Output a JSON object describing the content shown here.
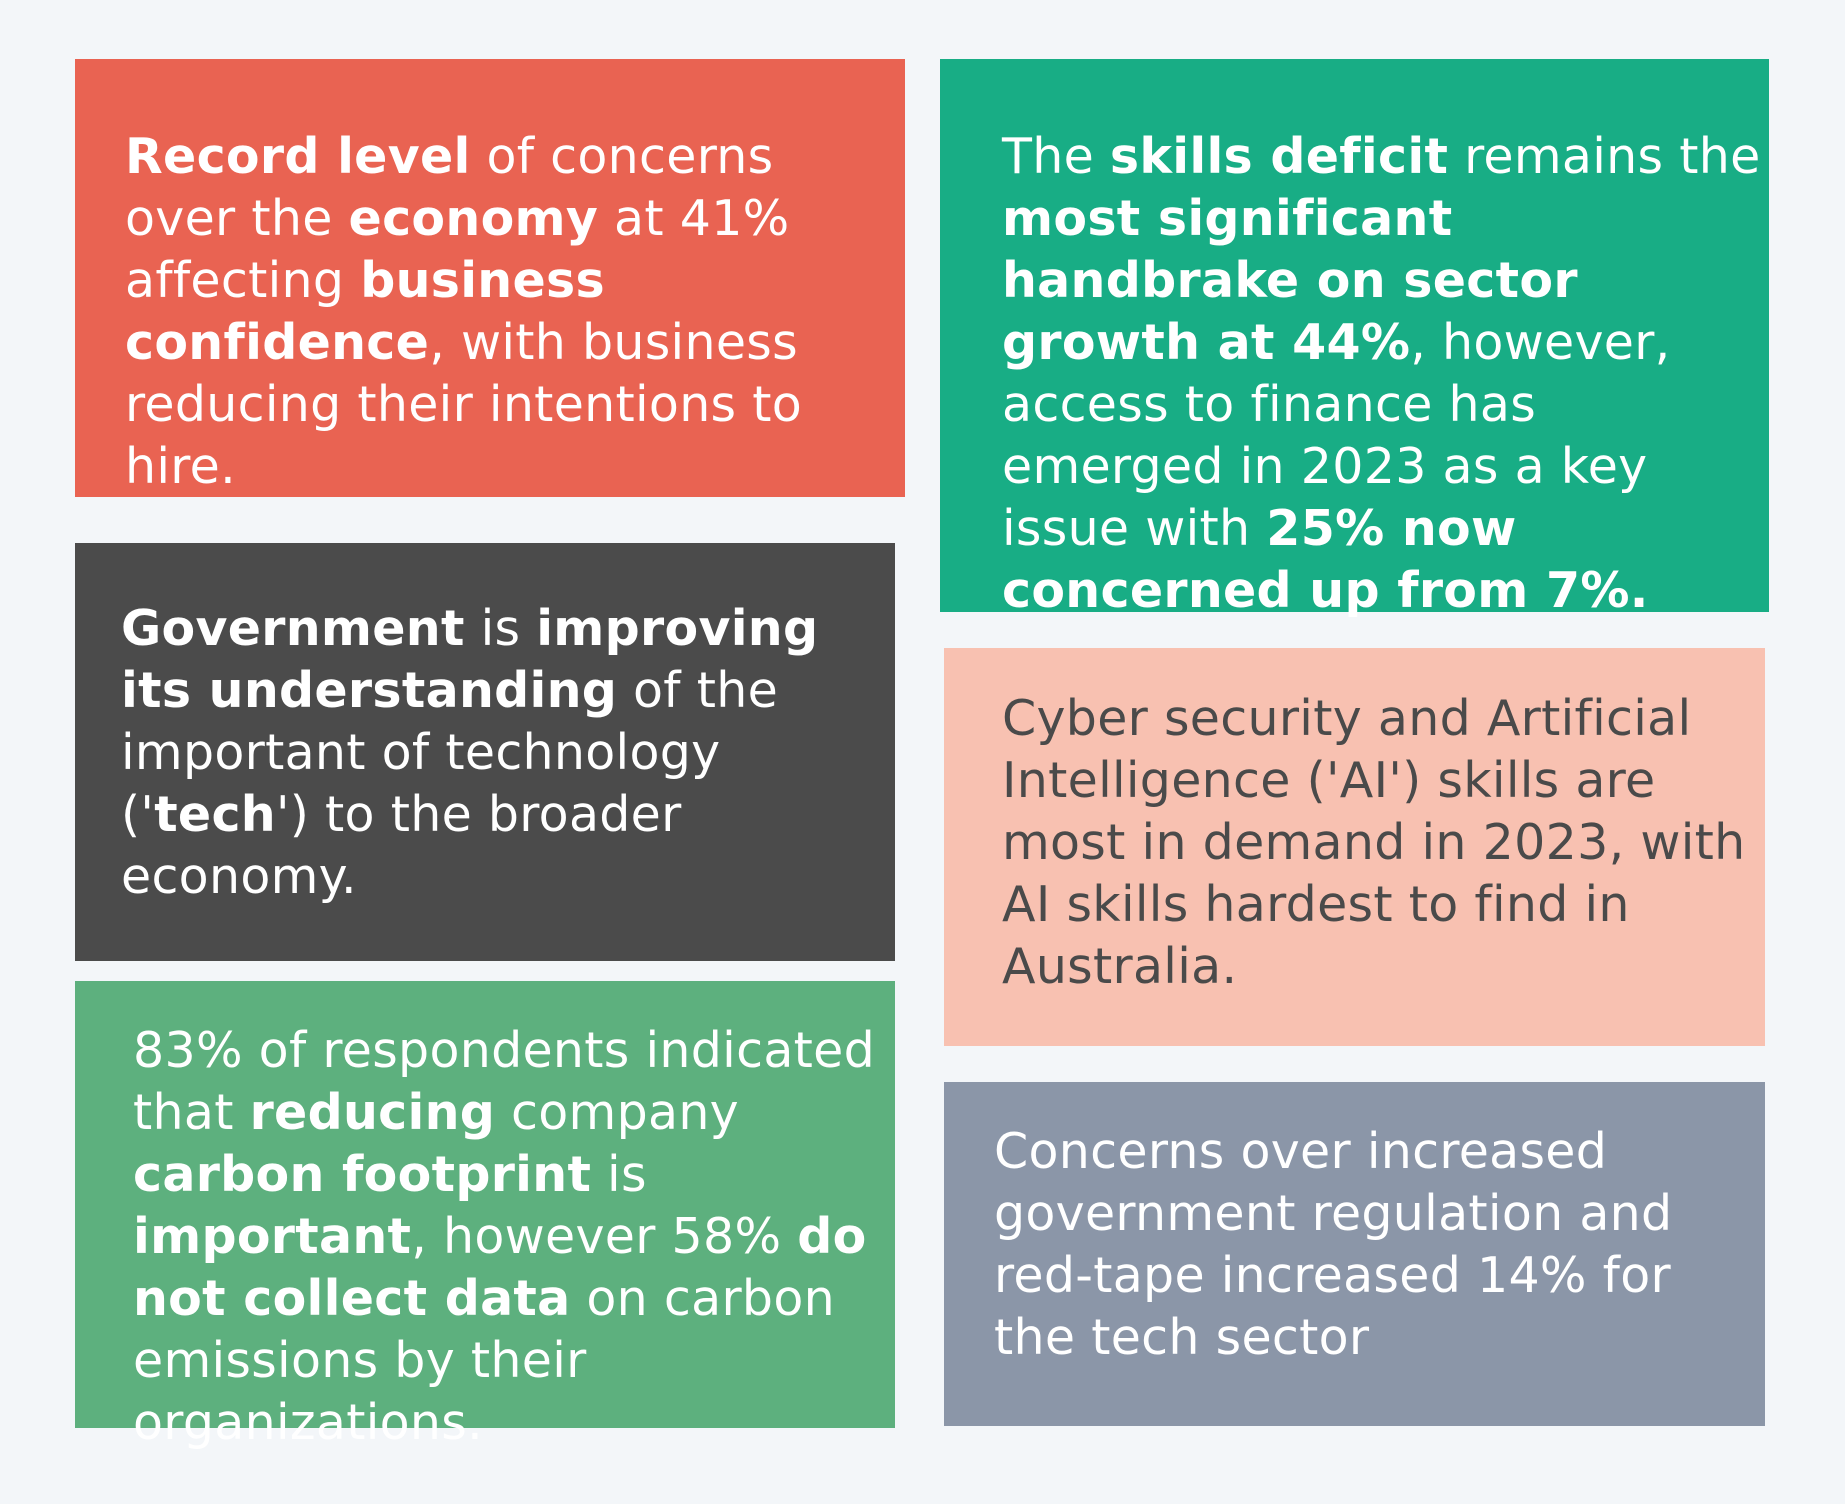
{
  "colors": {
    "background": "#f3f6f9",
    "card_economy": "#e96352",
    "card_skills": "#18ad85",
    "card_government": "#4b4b4b",
    "card_cyber": "#f8c1b1",
    "card_carbon": "#5db07e",
    "card_regulation": "#8b96a8"
  },
  "cards": {
    "economy": {
      "segments": [
        {
          "text": "Record level",
          "bold": true
        },
        {
          "text": " of concerns over the ",
          "bold": false
        },
        {
          "text": "economy",
          "bold": true
        },
        {
          "text": " at 41% affecting ",
          "bold": false
        },
        {
          "text": "business confidence",
          "bold": true
        },
        {
          "text": ", with business reducing their intentions to hire.",
          "bold": false
        }
      ]
    },
    "skills": {
      "segments": [
        {
          "text": "The ",
          "bold": false
        },
        {
          "text": "skills deficit",
          "bold": true
        },
        {
          "text": " remains the ",
          "bold": false
        },
        {
          "text": "most significant handbrake on sector growth at 44%",
          "bold": true
        },
        {
          "text": ", however, access to finance has emerged in 2023 as a key issue with ",
          "bold": false
        },
        {
          "text": "25% now concerned up from 7%.",
          "bold": true
        }
      ]
    },
    "government": {
      "segments": [
        {
          "text": "Government",
          "bold": true
        },
        {
          "text": " is ",
          "bold": false
        },
        {
          "text": "improving its understanding",
          "bold": true
        },
        {
          "text": " of the important of technology ('",
          "bold": false
        },
        {
          "text": "tech",
          "bold": true
        },
        {
          "text": "') to the broader economy.",
          "bold": false
        }
      ]
    },
    "cyber": {
      "segments": [
        {
          "text": "Cyber security and Artificial Intelligence ('AI') skills are most in demand in 2023, with AI skills hardest to find in Australia.",
          "bold": false
        }
      ]
    },
    "carbon": {
      "segments": [
        {
          "text": "83% of respondents indicated that ",
          "bold": false
        },
        {
          "text": "reducing",
          "bold": true
        },
        {
          "text": " company ",
          "bold": false
        },
        {
          "text": "carbon footprint",
          "bold": true
        },
        {
          "text": " is ",
          "bold": false
        },
        {
          "text": "important",
          "bold": true
        },
        {
          "text": ", however 58% ",
          "bold": false
        },
        {
          "text": "do not collect data",
          "bold": true
        },
        {
          "text": " on carbon emissions by their organizations.",
          "bold": false
        }
      ]
    },
    "regulation": {
      "segments": [
        {
          "text": "Concerns over increased government regulation and red-tape increased 14% for the tech sector",
          "bold": false
        }
      ]
    }
  }
}
